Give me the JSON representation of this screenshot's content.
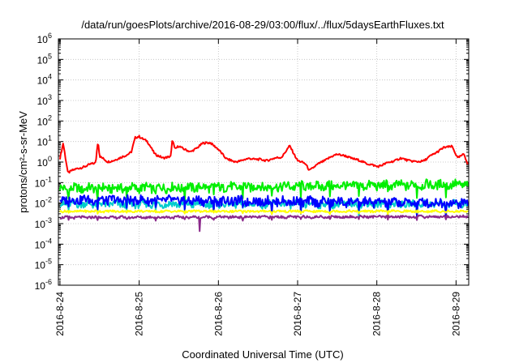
{
  "chart_data": {
    "type": "line",
    "title": "/data/run/goesPlots/archive/2016-08-29/03:00/flux/../flux/5daysEarthFluxes.txt",
    "xlabel": "Coordinated Universal Time (UTC)",
    "ylabel": "protons/cm²-s-sr-MeV",
    "y_scale": "log",
    "ylim_exp": [
      -6,
      6
    ],
    "y_tick_exponents": [
      -6,
      -5,
      -4,
      -3,
      -2,
      -1,
      0,
      1,
      2,
      3,
      4,
      5,
      6
    ],
    "y_tick_base": "10",
    "xlim_days": [
      -0.02,
      5.16
    ],
    "x_tick_labels": [
      "2016-8-24",
      "2016-8-25",
      "2016-8-26",
      "2016-8-27",
      "2016-8-28",
      "2016-8-29"
    ],
    "grid": true,
    "series": [
      {
        "color": "#ff0000",
        "x": [
          0,
          0.04,
          0.1,
          0.15,
          0.25,
          0.35,
          0.45,
          0.48,
          0.5,
          0.6,
          0.75,
          0.9,
          0.95,
          1.0,
          1.1,
          1.2,
          1.3,
          1.4,
          1.42,
          1.45,
          1.5,
          1.65,
          1.8,
          1.9,
          2.0,
          2.1,
          2.2,
          2.4,
          2.6,
          2.8,
          2.9,
          3.0,
          3.1,
          3.15,
          3.3,
          3.5,
          3.7,
          3.9,
          4.0,
          4.1,
          4.3,
          4.5,
          4.6,
          4.75,
          4.85,
          4.95,
          5.02,
          5.1,
          5.15
        ],
        "y": [
          1.5,
          8.0,
          0.3,
          0.4,
          0.5,
          0.7,
          0.9,
          12.0,
          2.0,
          1.0,
          1.5,
          3.0,
          15.0,
          18.0,
          10.0,
          2.5,
          1.5,
          2.0,
          14.0,
          4.0,
          6.0,
          3.0,
          8.0,
          9.0,
          4.0,
          1.5,
          1.0,
          1.5,
          1.2,
          1.8,
          6.0,
          1.2,
          0.8,
          0.4,
          1.0,
          2.5,
          1.5,
          0.8,
          0.6,
          0.8,
          1.5,
          1.0,
          1.2,
          3.0,
          5.0,
          6.0,
          1.5,
          2.5,
          0.8
        ]
      },
      {
        "color": "#00ee00",
        "x": [
          0,
          5.15
        ],
        "y": [
          0.05,
          0.08
        ]
      },
      {
        "color": "#00cccc",
        "x": [
          0,
          5.15
        ],
        "y": [
          0.009,
          0.009
        ]
      },
      {
        "color": "#0000ff",
        "x": [
          0,
          5.15
        ],
        "y": [
          0.015,
          0.01
        ]
      },
      {
        "color": "#ffff00",
        "x": [
          0,
          5.15
        ],
        "y": [
          0.004,
          0.004
        ]
      },
      {
        "color": "#8b2a8b",
        "x": [
          0,
          5.15
        ],
        "y": [
          0.002,
          0.0022
        ]
      }
    ]
  }
}
